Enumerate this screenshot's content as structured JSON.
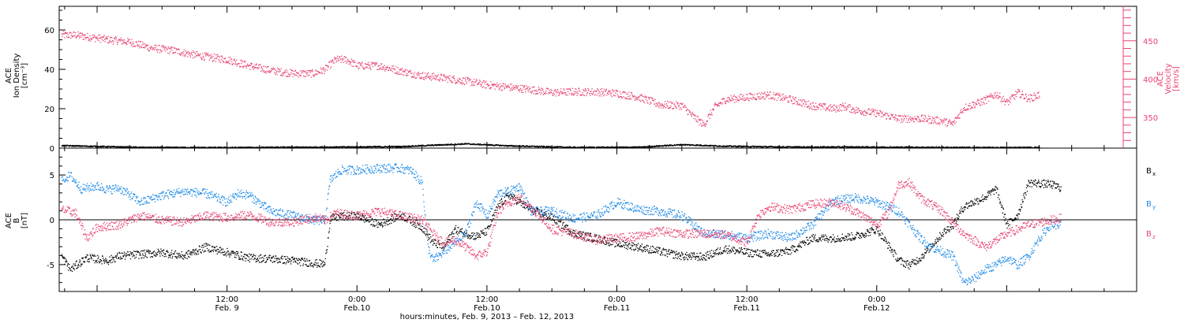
{
  "colors": {
    "black": "#000000",
    "pink": "#e8436f",
    "blue": "#1f8ae8"
  },
  "chart_data": [
    {
      "type": "scatter",
      "panel": "top",
      "ylabel_left": [
        "ACE",
        "Ion Density",
        "[cm⁻³]"
      ],
      "ylabel_right": [
        "ACE",
        "Velocity",
        "[km/s]"
      ],
      "ylim_left": [
        0,
        72
      ],
      "ylim_right": [
        310,
        495
      ],
      "yticks_left": [
        "0",
        "20",
        "40",
        "60"
      ],
      "yticks_right": [
        "350",
        "400",
        "450"
      ],
      "x_range_hours": [
        -3.5,
        96
      ],
      "series": [
        {
          "axis": "right",
          "color": "#e8436f",
          "points": [
            [
              -3.3,
              458
            ],
            [
              -2,
              458
            ],
            [
              -0.5,
              455
            ],
            [
              1,
              452
            ],
            [
              3,
              449
            ],
            [
              5,
              441
            ],
            [
              7,
              438
            ],
            [
              9,
              432
            ],
            [
              11,
              428
            ],
            [
              12,
              426
            ],
            [
              14,
              418
            ],
            [
              16,
              412
            ],
            [
              18,
              408
            ],
            [
              20,
              408
            ],
            [
              21,
              413
            ],
            [
              22,
              426
            ],
            [
              23,
              426
            ],
            [
              24,
              418
            ],
            [
              25,
              418
            ],
            [
              26,
              418
            ],
            [
              28,
              411
            ],
            [
              30,
              405
            ],
            [
              32,
              402
            ],
            [
              34,
              398
            ],
            [
              36,
              393
            ],
            [
              38,
              390
            ],
            [
              40,
              387
            ],
            [
              42,
              383
            ],
            [
              44,
              384
            ],
            [
              46,
              384
            ],
            [
              48,
              382
            ],
            [
              50,
              377
            ],
            [
              52,
              367
            ],
            [
              54,
              366
            ],
            [
              55,
              352
            ],
            [
              56,
              341
            ],
            [
              57,
              364
            ],
            [
              58,
              374
            ],
            [
              60,
              377
            ],
            [
              62,
              380
            ],
            [
              64,
              374
            ],
            [
              66,
              366
            ],
            [
              68,
              362
            ],
            [
              69,
              365
            ],
            [
              70,
              360
            ],
            [
              72,
              356
            ],
            [
              74,
              349
            ],
            [
              76,
              349
            ],
            [
              78,
              346
            ],
            [
              79,
              342
            ],
            [
              80,
              363
            ],
            [
              82,
              373
            ],
            [
              83,
              381
            ],
            [
              84,
              370
            ],
            [
              85,
              383
            ],
            [
              86,
              375
            ],
            [
              87,
              380
            ]
          ],
          "spread": 5
        },
        {
          "axis": "left",
          "color": "#000000",
          "points": [
            [
              -3.3,
              1.5
            ],
            [
              4,
              0.6
            ],
            [
              12,
              0.5
            ],
            [
              20,
              0.7
            ],
            [
              28,
              1.0
            ],
            [
              34,
              2.4
            ],
            [
              38,
              1.4
            ],
            [
              44,
              0.6
            ],
            [
              50,
              0.7
            ],
            [
              54,
              2.0
            ],
            [
              58,
              1.2
            ],
            [
              64,
              0.8
            ],
            [
              70,
              0.8
            ],
            [
              78,
              0.6
            ],
            [
              84,
              0.5
            ],
            [
              87,
              0.6
            ]
          ],
          "spread": 0.3
        }
      ]
    },
    {
      "type": "scatter",
      "panel": "bottom",
      "ylabel": [
        "ACE",
        "B",
        "[nT]"
      ],
      "ylim": [
        -8,
        8
      ],
      "yticks": [
        "-5",
        "0",
        "5"
      ],
      "x_range_hours": [
        -3.5,
        96
      ],
      "legend": [
        {
          "name": "B",
          "sub": "x",
          "color": "#000000"
        },
        {
          "name": "B",
          "sub": "y",
          "color": "#1f8ae8"
        },
        {
          "name": "B",
          "sub": "z",
          "color": "#e8436f"
        }
      ],
      "series": [
        {
          "name": "Bx",
          "color": "#000000",
          "points": [
            [
              -3.3,
              -4
            ],
            [
              -2.5,
              -5.5
            ],
            [
              -1,
              -4.2
            ],
            [
              1,
              -4.5
            ],
            [
              2,
              -4
            ],
            [
              4,
              -3.8
            ],
            [
              6,
              -3.6
            ],
            [
              8,
              -4
            ],
            [
              10,
              -3
            ],
            [
              12,
              -3.6
            ],
            [
              14,
              -4.2
            ],
            [
              16,
              -4.3
            ],
            [
              18,
              -4.5
            ],
            [
              20,
              -4.8
            ],
            [
              21,
              -4.9
            ],
            [
              21.5,
              0.2
            ],
            [
              22.5,
              0.4
            ],
            [
              24,
              0.5
            ],
            [
              26,
              -0.5
            ],
            [
              28,
              0.6
            ],
            [
              30,
              -0.8
            ],
            [
              31,
              -2.5
            ],
            [
              32,
              -3
            ],
            [
              33,
              -1
            ],
            [
              34,
              -1.5
            ],
            [
              35,
              -1.8
            ],
            [
              36,
              -1.2
            ],
            [
              37,
              1.6
            ],
            [
              38,
              2.8
            ],
            [
              40,
              1.2
            ],
            [
              42,
              0.3
            ],
            [
              44,
              -1.5
            ],
            [
              46,
              -2
            ],
            [
              48,
              -2.6
            ],
            [
              50,
              -3
            ],
            [
              52,
              -3.5
            ],
            [
              54,
              -4
            ],
            [
              56,
              -4.1
            ],
            [
              58,
              -3.2
            ],
            [
              60,
              -3.6
            ],
            [
              62,
              -3.8
            ],
            [
              64,
              -3.4
            ],
            [
              66,
              -2
            ],
            [
              68,
              -2
            ],
            [
              70,
              -1.8
            ],
            [
              72,
              -1
            ],
            [
              74,
              -4.5
            ],
            [
              75,
              -5
            ],
            [
              76,
              -4.2
            ],
            [
              78,
              -1.5
            ],
            [
              79,
              -0.5
            ],
            [
              80,
              1.5
            ],
            [
              82,
              2.6
            ],
            [
              83,
              3.5
            ],
            [
              84,
              -0.5
            ],
            [
              85,
              0.6
            ],
            [
              86,
              4.2
            ],
            [
              88,
              4
            ],
            [
              89,
              3.6
            ]
          ],
          "spread": 0.45
        },
        {
          "name": "By",
          "color": "#1f8ae8",
          "points": [
            [
              -3.3,
              4.5
            ],
            [
              -2.5,
              5
            ],
            [
              -1.5,
              3.5
            ],
            [
              0,
              3.8
            ],
            [
              1,
              3.4
            ],
            [
              2,
              3.6
            ],
            [
              4,
              2
            ],
            [
              6,
              2.8
            ],
            [
              8,
              3.2
            ],
            [
              10,
              3
            ],
            [
              12,
              2
            ],
            [
              13,
              3
            ],
            [
              14,
              2.8
            ],
            [
              16,
              1
            ],
            [
              18,
              0.5
            ],
            [
              20,
              0
            ],
            [
              21,
              0
            ],
            [
              21.5,
              4.5
            ],
            [
              22.5,
              5.6
            ],
            [
              24,
              5.6
            ],
            [
              26,
              5.8
            ],
            [
              28,
              5.8
            ],
            [
              29,
              5.5
            ],
            [
              30,
              4.2
            ],
            [
              30.5,
              -3
            ],
            [
              31,
              -4.5
            ],
            [
              32,
              -3.5
            ],
            [
              33,
              -2.5
            ],
            [
              34,
              -1.5
            ],
            [
              35,
              2
            ],
            [
              36,
              0.5
            ],
            [
              37,
              3
            ],
            [
              38,
              3.2
            ],
            [
              39,
              3.8
            ],
            [
              40,
              1
            ],
            [
              42,
              1
            ],
            [
              44,
              0.2
            ],
            [
              46,
              0.5
            ],
            [
              48,
              2
            ],
            [
              50,
              1.2
            ],
            [
              52,
              1
            ],
            [
              54,
              0.5
            ],
            [
              56,
              -1.5
            ],
            [
              58,
              -1.6
            ],
            [
              60,
              -2
            ],
            [
              62,
              -1.5
            ],
            [
              64,
              -2
            ],
            [
              66,
              -0.5
            ],
            [
              68,
              2.2
            ],
            [
              70,
              2.5
            ],
            [
              72,
              2
            ],
            [
              73,
              1.5
            ],
            [
              74,
              1
            ],
            [
              75,
              -0.5
            ],
            [
              76,
              -2
            ],
            [
              77,
              -3
            ],
            [
              78,
              -3.5
            ],
            [
              79,
              -4
            ],
            [
              80,
              -7
            ],
            [
              81,
              -6.5
            ],
            [
              82,
              -5.5
            ],
            [
              83,
              -5
            ],
            [
              84,
              -4.2
            ],
            [
              85,
              -5
            ],
            [
              86,
              -4
            ],
            [
              87,
              -2
            ],
            [
              88,
              -0.5
            ],
            [
              89,
              -0.5
            ]
          ],
          "spread": 0.5
        },
        {
          "name": "Bz",
          "color": "#e8436f",
          "points": [
            [
              -3.3,
              1.2
            ],
            [
              -2,
              0.8
            ],
            [
              -1,
              -2
            ],
            [
              0,
              -0.8
            ],
            [
              2,
              -0.5
            ],
            [
              4,
              0.5
            ],
            [
              6,
              0
            ],
            [
              8,
              -0.2
            ],
            [
              10,
              0.5
            ],
            [
              12,
              0.3
            ],
            [
              14,
              0.6
            ],
            [
              16,
              -0.2
            ],
            [
              18,
              -0.2
            ],
            [
              20,
              0.3
            ],
            [
              21,
              0
            ],
            [
              22,
              0.8
            ],
            [
              24,
              0.5
            ],
            [
              26,
              1
            ],
            [
              28,
              0.5
            ],
            [
              30,
              0
            ],
            [
              31,
              -1.5
            ],
            [
              32,
              -2.5
            ],
            [
              33,
              -2.2
            ],
            [
              34,
              -3
            ],
            [
              35,
              -4
            ],
            [
              36,
              -3.5
            ],
            [
              37,
              1
            ],
            [
              38,
              2
            ],
            [
              39,
              2.5
            ],
            [
              40,
              1.5
            ],
            [
              42,
              -1
            ],
            [
              44,
              -1.5
            ],
            [
              46,
              -2.2
            ],
            [
              48,
              -2
            ],
            [
              50,
              -1.8
            ],
            [
              52,
              -1.2
            ],
            [
              54,
              -1.5
            ],
            [
              56,
              -1.5
            ],
            [
              58,
              -1.6
            ],
            [
              60,
              -2.5
            ],
            [
              61,
              0.5
            ],
            [
              62,
              1.5
            ],
            [
              64,
              1.2
            ],
            [
              66,
              1.8
            ],
            [
              68,
              2
            ],
            [
              70,
              1
            ],
            [
              72,
              -0.5
            ],
            [
              73,
              0.8
            ],
            [
              74,
              4
            ],
            [
              75,
              4.2
            ],
            [
              76,
              2.5
            ],
            [
              78,
              1
            ],
            [
              80,
              -1.5
            ],
            [
              82,
              -3
            ],
            [
              84,
              -1.5
            ],
            [
              86,
              -0.5
            ],
            [
              88,
              0
            ],
            [
              89,
              0.2
            ]
          ],
          "spread": 0.5
        }
      ]
    }
  ],
  "x_axis": {
    "ticks": [
      {
        "hour": 12,
        "time": "12:00",
        "date": "Feb. 9"
      },
      {
        "hour": 24,
        "time": "0:00",
        "date": "Feb.10"
      },
      {
        "hour": 36,
        "time": "12:00",
        "date": "Feb.10"
      },
      {
        "hour": 48,
        "time": "0:00",
        "date": "Feb.11"
      },
      {
        "hour": 60,
        "time": "12:00",
        "date": "Feb.11"
      },
      {
        "hour": 72,
        "time": "0:00",
        "date": "Feb.12"
      }
    ],
    "title": "hours:minutes, Feb.  9, 2013 – Feb. 12, 2013"
  }
}
